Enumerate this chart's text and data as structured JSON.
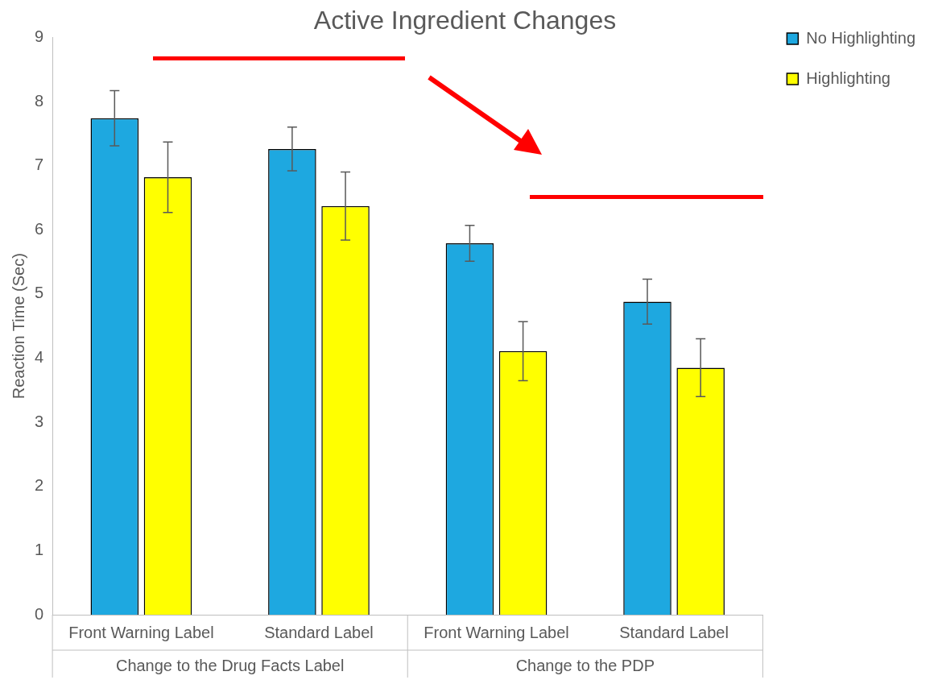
{
  "chart_data": {
    "type": "bar",
    "title": "Active Ingredient Changes",
    "ylabel": "Reaction Time (Sec)",
    "categories": [
      "Front Warning Label",
      "Standard Label",
      "Front Warning Label",
      "Standard Label"
    ],
    "series": [
      {
        "name": "No Highlighting",
        "color": "#1ea8e0",
        "values": [
          7.74,
          7.26,
          5.79,
          4.88
        ],
        "errors": [
          0.43,
          0.34,
          0.28,
          0.35
        ]
      },
      {
        "name": "Highlighting",
        "color": "#ffff00",
        "values": [
          6.82,
          6.37,
          4.11,
          3.85
        ],
        "errors": [
          0.55,
          0.53,
          0.46,
          0.45
        ]
      }
    ],
    "ylim": [
      0,
      9
    ],
    "yticks": [
      0,
      1,
      2,
      3,
      4,
      5,
      6,
      7,
      8,
      9
    ],
    "grid": false,
    "legend": "top right",
    "annotations": [
      "Change to the Drug Facts Label",
      "Change to the PDP"
    ]
  }
}
